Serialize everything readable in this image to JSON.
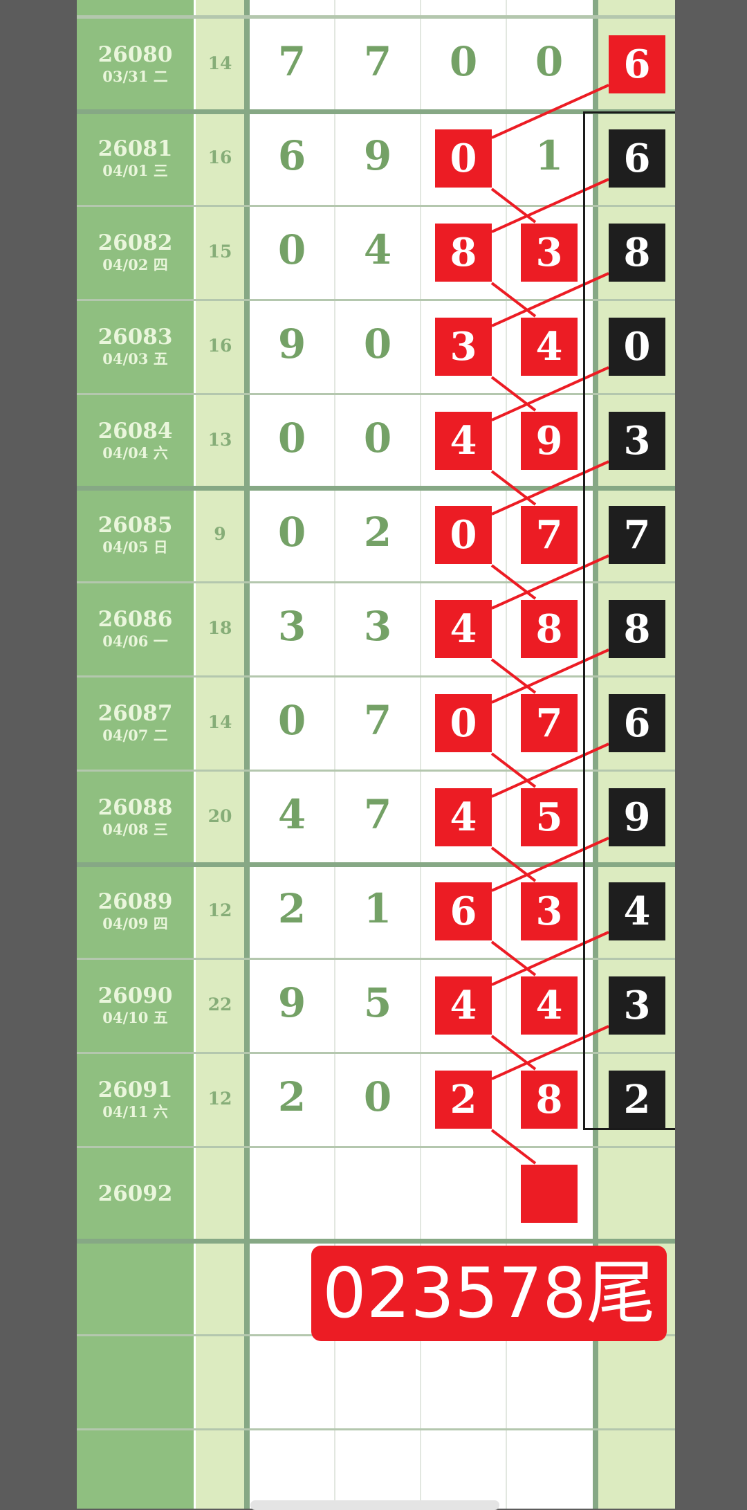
{
  "rows": [
    {
      "issue": "26080",
      "date": "03/31 二",
      "sum": "14",
      "digits": [
        "7",
        "7",
        "0",
        "0"
      ],
      "red": [],
      "last": "6",
      "last_style": "red"
    },
    {
      "issue": "26081",
      "date": "04/01 三",
      "sum": "16",
      "digits": [
        "6",
        "9",
        "0",
        "1"
      ],
      "red": [
        2
      ],
      "last": "6",
      "last_style": "black"
    },
    {
      "issue": "26082",
      "date": "04/02 四",
      "sum": "15",
      "digits": [
        "0",
        "4",
        "8",
        "3"
      ],
      "red": [
        2,
        3
      ],
      "last": "8",
      "last_style": "black"
    },
    {
      "issue": "26083",
      "date": "04/03 五",
      "sum": "16",
      "digits": [
        "9",
        "0",
        "3",
        "4"
      ],
      "red": [
        2,
        3
      ],
      "last": "0",
      "last_style": "black"
    },
    {
      "issue": "26084",
      "date": "04/04 六",
      "sum": "13",
      "digits": [
        "0",
        "0",
        "4",
        "9"
      ],
      "red": [
        2,
        3
      ],
      "last": "3",
      "last_style": "black"
    },
    {
      "issue": "26085",
      "date": "04/05 日",
      "sum": "9",
      "digits": [
        "0",
        "2",
        "0",
        "7"
      ],
      "red": [
        2,
        3
      ],
      "last": "7",
      "last_style": "black"
    },
    {
      "issue": "26086",
      "date": "04/06 一",
      "sum": "18",
      "digits": [
        "3",
        "3",
        "4",
        "8"
      ],
      "red": [
        2,
        3
      ],
      "last": "8",
      "last_style": "black"
    },
    {
      "issue": "26087",
      "date": "04/07 二",
      "sum": "14",
      "digits": [
        "0",
        "7",
        "0",
        "7"
      ],
      "red": [
        2,
        3
      ],
      "last": "6",
      "last_style": "black"
    },
    {
      "issue": "26088",
      "date": "04/08 三",
      "sum": "20",
      "digits": [
        "4",
        "7",
        "4",
        "5"
      ],
      "red": [
        2,
        3
      ],
      "last": "9",
      "last_style": "black"
    },
    {
      "issue": "26089",
      "date": "04/09 四",
      "sum": "12",
      "digits": [
        "2",
        "1",
        "6",
        "3"
      ],
      "red": [
        2,
        3
      ],
      "last": "4",
      "last_style": "black"
    },
    {
      "issue": "26090",
      "date": "04/10 五",
      "sum": "22",
      "digits": [
        "9",
        "5",
        "4",
        "4"
      ],
      "red": [
        2,
        3
      ],
      "last": "3",
      "last_style": "black"
    },
    {
      "issue": "26091",
      "date": "04/11 六",
      "sum": "12",
      "digits": [
        "2",
        "0",
        "2",
        "8"
      ],
      "red": [
        2,
        3
      ],
      "last": "2",
      "last_style": "black"
    },
    {
      "issue": "26092",
      "date": "",
      "sum": "",
      "digits": [
        "",
        "",
        "",
        ""
      ],
      "red": [
        3
      ],
      "last": "",
      "last_style": ""
    }
  ],
  "prediction_label": "023578尾",
  "colors": {
    "red": "#ec1c24",
    "black": "#1e1e1e",
    "issue_bg": "#8fbf80",
    "light_green": "#dcebc0",
    "digit_green": "#74a166"
  }
}
